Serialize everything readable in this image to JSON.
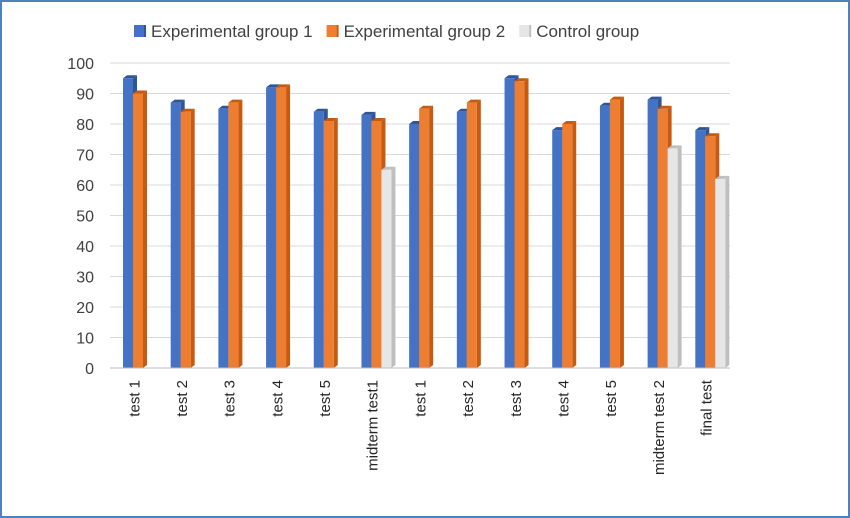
{
  "chart_data": {
    "type": "bar",
    "title": "",
    "xlabel": "",
    "ylabel": "",
    "ylim": [
      0,
      100
    ],
    "yticks": [
      0,
      10,
      20,
      30,
      40,
      50,
      60,
      70,
      80,
      90,
      100
    ],
    "grid": true,
    "legend_position": "top",
    "categories": [
      "test 1",
      "test 2",
      "test 3",
      "test 4",
      "test 5",
      "midterm test1",
      "test 1",
      "test 2",
      "test 3",
      "test 4",
      "test 5",
      "midterm test 2",
      "final test"
    ],
    "series": [
      {
        "name": "Experimental group 1",
        "color": "#4472c4",
        "side_color": "#2f5597",
        "values": [
          95,
          87,
          85,
          92,
          84,
          83,
          80,
          84,
          95,
          78,
          86,
          88,
          78
        ]
      },
      {
        "name": "Experimental group 2",
        "color": "#ed7d31",
        "side_color": "#c55a11",
        "values": [
          90,
          84,
          87,
          92,
          81,
          81,
          85,
          87,
          94,
          80,
          88,
          85,
          76
        ]
      },
      {
        "name": "Control group",
        "color": "#e7e6e6",
        "side_color": "#bfbfbf",
        "values": [
          null,
          null,
          null,
          null,
          null,
          65,
          null,
          null,
          null,
          null,
          null,
          72,
          62
        ]
      }
    ]
  }
}
